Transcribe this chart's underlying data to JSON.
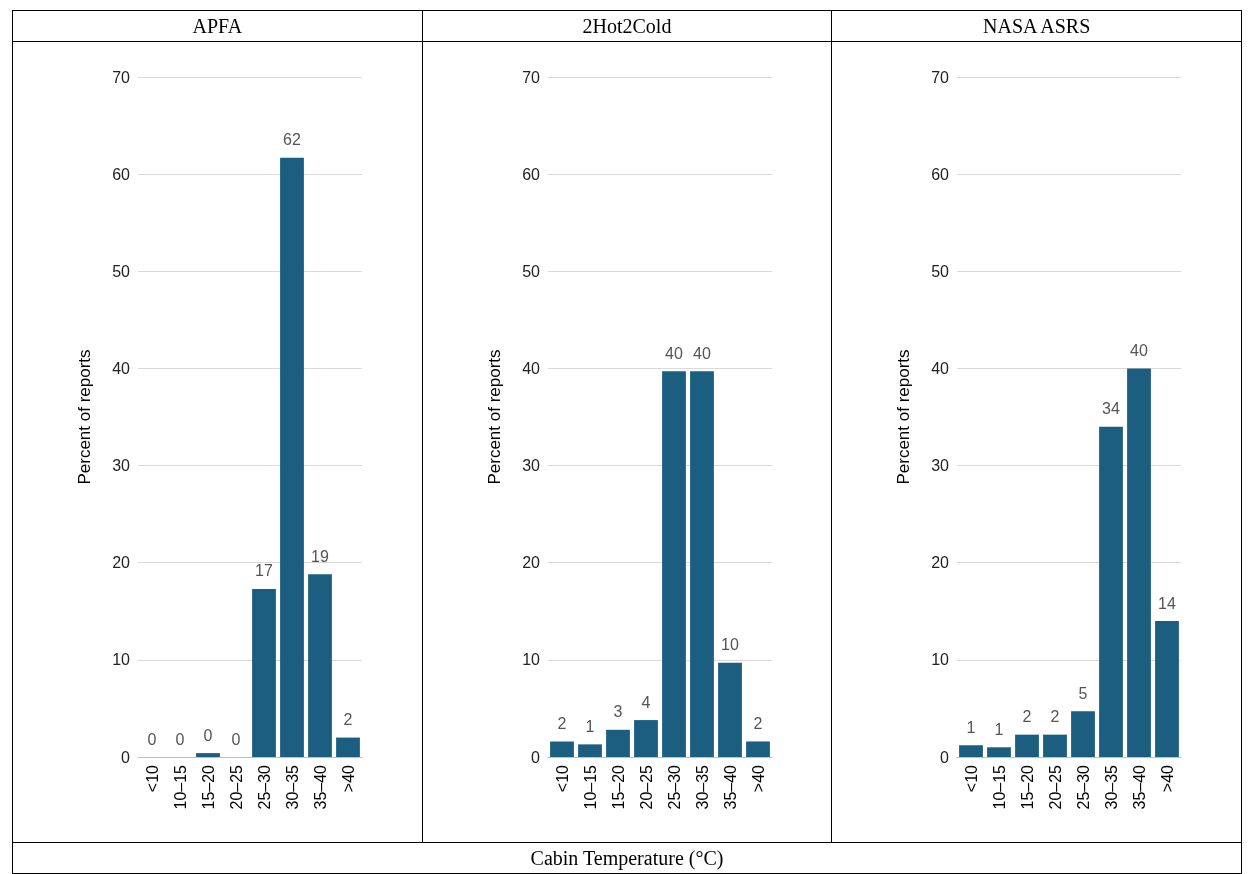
{
  "chart_data": [
    {
      "type": "bar",
      "title": "APFA",
      "ylabel": "Percent of reports",
      "categories": [
        "<10",
        "10–15",
        "15–20",
        "20–25",
        "25–30",
        "30–35",
        "35–40",
        ">40"
      ],
      "color": "#1b5e80",
      "values": [
        0,
        0,
        0.4,
        0,
        17.3,
        61.7,
        18.8,
        2
      ],
      "value_labels": [
        "0",
        "0",
        "0",
        "0",
        "17",
        "62",
        "19",
        "2"
      ],
      "ylim": [
        0,
        70
      ],
      "yticks": [
        0,
        10,
        20,
        30,
        40,
        50,
        60,
        70
      ],
      "grid": "y"
    },
    {
      "type": "bar",
      "title": "2Hot2Cold",
      "ylabel": "Percent of reports",
      "xlabel": "Cabin Temperature (°C)",
      "categories": [
        "<10",
        "10–15",
        "15–20",
        "20–25",
        "25–30",
        "30–35",
        "35–40",
        ">40"
      ],
      "color": "#1b5e80",
      "values": [
        1.6,
        1.3,
        2.8,
        3.8,
        39.7,
        39.7,
        9.7,
        1.6
      ],
      "value_labels": [
        "2",
        "1",
        "3",
        "4",
        "40",
        "40",
        "10",
        "2"
      ],
      "ylim": [
        0,
        70
      ],
      "yticks": [
        0,
        10,
        20,
        30,
        40,
        50,
        60,
        70
      ],
      "grid": "y"
    },
    {
      "type": "bar",
      "title": "NASA ASRS",
      "ylabel": "Percent of reports",
      "categories": [
        "<10",
        "10–15",
        "15–20",
        "20–25",
        "25–30",
        "30–35",
        "35–40",
        ">40"
      ],
      "color": "#1b5e80",
      "values": [
        1.2,
        1.0,
        2.3,
        2.3,
        4.7,
        34,
        40,
        14
      ],
      "value_labels": [
        "1",
        "1",
        "2",
        "2",
        "5",
        "34",
        "40",
        "14"
      ],
      "ylim": [
        0,
        70
      ],
      "yticks": [
        0,
        10,
        20,
        30,
        40,
        50,
        60,
        70
      ],
      "grid": "y"
    }
  ]
}
